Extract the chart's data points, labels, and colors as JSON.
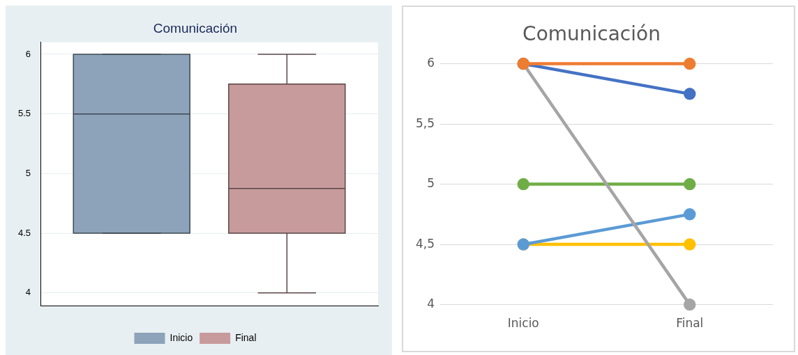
{
  "chart_data": [
    {
      "type": "box",
      "title": "Comunicación",
      "categories": [
        null
      ],
      "series": [
        {
          "name": "Inicio",
          "color": "#8da3b9",
          "boxes": [
            {
              "low": 4.5,
              "q1": 4.5,
              "median": 5.5,
              "q3": 6,
              "high": 6
            }
          ]
        },
        {
          "name": "Final",
          "color": "#c79a9c",
          "boxes": [
            {
              "low": 4,
              "q1": 4.5,
              "median": 4.875,
              "q3": 5.75,
              "high": 6
            }
          ]
        }
      ],
      "ylim": [
        3.89,
        6.1
      ],
      "yticks": [
        4,
        4.5,
        5,
        5.5,
        6
      ],
      "grid": "y",
      "legend": "bottom"
    },
    {
      "type": "line",
      "title": "Comunicación",
      "categories": [
        "Inicio",
        "Final"
      ],
      "series": [
        {
          "color": "#ed7d31",
          "values": [
            6,
            6
          ]
        },
        {
          "color": "#a5a5a5",
          "values": [
            6,
            4
          ]
        },
        {
          "color": "#4472c4",
          "values": [
            6,
            5.75
          ]
        },
        {
          "color": "#70ad47",
          "values": [
            5,
            5
          ]
        },
        {
          "color": "#5b9bd5",
          "values": [
            4.5,
            4.75
          ]
        },
        {
          "color": "#ffc000",
          "values": [
            4.5,
            4.5
          ]
        }
      ],
      "ylim": [
        4,
        6
      ],
      "yticks": [
        4,
        {
          "value": 4.5,
          "label": "4,5"
        },
        5,
        {
          "value": 5.5,
          "label": "5,5"
        },
        6
      ],
      "grid": "y",
      "marker": "circle",
      "legend": false
    }
  ]
}
